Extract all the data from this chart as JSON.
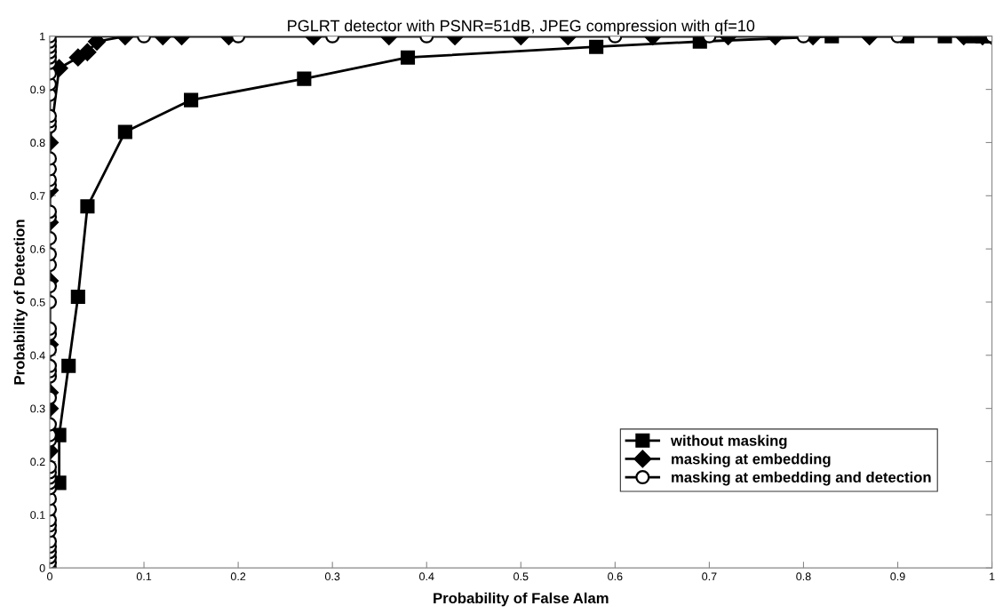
{
  "chart_data": {
    "type": "line",
    "title": "PGLRT detector with PSNR=51dB, JPEG compression with qf=10",
    "xlabel": "Probability of False Alam",
    "ylabel": "Probability of Detection",
    "xlim": [
      0,
      1
    ],
    "ylim": [
      0,
      1
    ],
    "xticks": [
      0,
      0.1,
      0.2,
      0.3,
      0.4,
      0.5,
      0.6,
      0.7,
      0.8,
      0.9,
      1
    ],
    "yticks": [
      0,
      0.1,
      0.2,
      0.3,
      0.4,
      0.5,
      0.6,
      0.7,
      0.8,
      0.9,
      1
    ],
    "grid": false,
    "legend": "bottom right",
    "line_style": "solid",
    "series": [
      {
        "name": "without masking",
        "color": "#000000",
        "marker": "square",
        "x": [
          0.01,
          0.01,
          0.02,
          0.03,
          0.04,
          0.08,
          0.15,
          0.27,
          0.38,
          0.58,
          0.69,
          0.83,
          0.91,
          0.95,
          0.98,
          0.99,
          1
        ],
        "values": [
          0.16,
          0.25,
          0.38,
          0.51,
          0.68,
          0.82,
          0.88,
          0.92,
          0.96,
          0.98,
          0.99,
          1,
          1,
          1,
          1,
          1,
          1
        ]
      },
      {
        "name": "masking at embedding",
        "color": "#000000",
        "marker": "diamond",
        "x": [
          0,
          0,
          0,
          0,
          0,
          0,
          0,
          0,
          0.01,
          0.03,
          0.04,
          0.05,
          0.08,
          0.12,
          0.14,
          0.19,
          0.28,
          0.36,
          0.43,
          0.5,
          0.55,
          0.64,
          0.72,
          0.77,
          0.81,
          0.87,
          0.97,
          0.99,
          1
        ],
        "values": [
          0.22,
          0.3,
          0.33,
          0.42,
          0.54,
          0.65,
          0.71,
          0.8,
          0.94,
          0.96,
          0.97,
          0.99,
          1,
          1,
          1,
          1,
          1,
          1,
          1,
          1,
          1,
          1,
          1,
          1,
          1,
          1,
          1,
          1,
          1
        ]
      },
      {
        "name": "masking at embedding and detection",
        "color": "#000000",
        "marker": "circle",
        "x": [
          0,
          0,
          0,
          0,
          0,
          0,
          0,
          0,
          0,
          0,
          0,
          0,
          0,
          0,
          0,
          0,
          0,
          0,
          0,
          0,
          0,
          0,
          0,
          0,
          0,
          0,
          0,
          0,
          0,
          0,
          0,
          0,
          0,
          0,
          0,
          0,
          0,
          0,
          0,
          0,
          0,
          0,
          0,
          0,
          0,
          0,
          0,
          0,
          0,
          0.1,
          0.2,
          0.3,
          0.4,
          0.6,
          0.7,
          0.8,
          0.9,
          1
        ],
        "values": [
          0,
          0.01,
          0.02,
          0.03,
          0.04,
          0.05,
          0.07,
          0.08,
          0.09,
          0.11,
          0.13,
          0.15,
          0.16,
          0.17,
          0.18,
          0.19,
          0.24,
          0.25,
          0.27,
          0.32,
          0.36,
          0.37,
          0.38,
          0.41,
          0.44,
          0.45,
          0.5,
          0.53,
          0.57,
          0.59,
          0.62,
          0.66,
          0.67,
          0.72,
          0.73,
          0.75,
          0.77,
          0.83,
          0.84,
          0.85,
          0.89,
          0.91,
          0.93,
          0.95,
          0.96,
          0.97,
          0.98,
          0.99,
          1,
          1,
          1,
          1,
          1,
          1,
          1,
          1,
          1,
          1
        ]
      }
    ]
  }
}
